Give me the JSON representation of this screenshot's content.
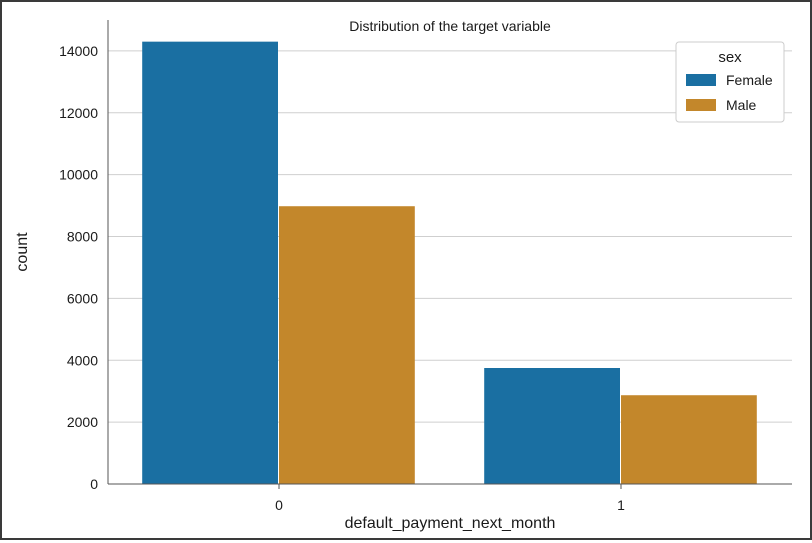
{
  "chart_data": {
    "type": "bar",
    "title": "Distribution of the target variable",
    "xlabel": "default_payment_next_month",
    "ylabel": "count",
    "categories": [
      "0",
      "1"
    ],
    "series": [
      {
        "name": "Female",
        "color": "#1a6fa2",
        "values": [
          14300,
          3750
        ]
      },
      {
        "name": "Male",
        "color": "#c3872b",
        "values": [
          8980,
          2870
        ]
      }
    ],
    "ylim": [
      0,
      15000
    ],
    "yticks": [
      0,
      2000,
      4000,
      6000,
      8000,
      10000,
      12000,
      14000
    ],
    "grid": "horizontal",
    "legend": {
      "title": "sex",
      "placement": "top-right"
    }
  }
}
